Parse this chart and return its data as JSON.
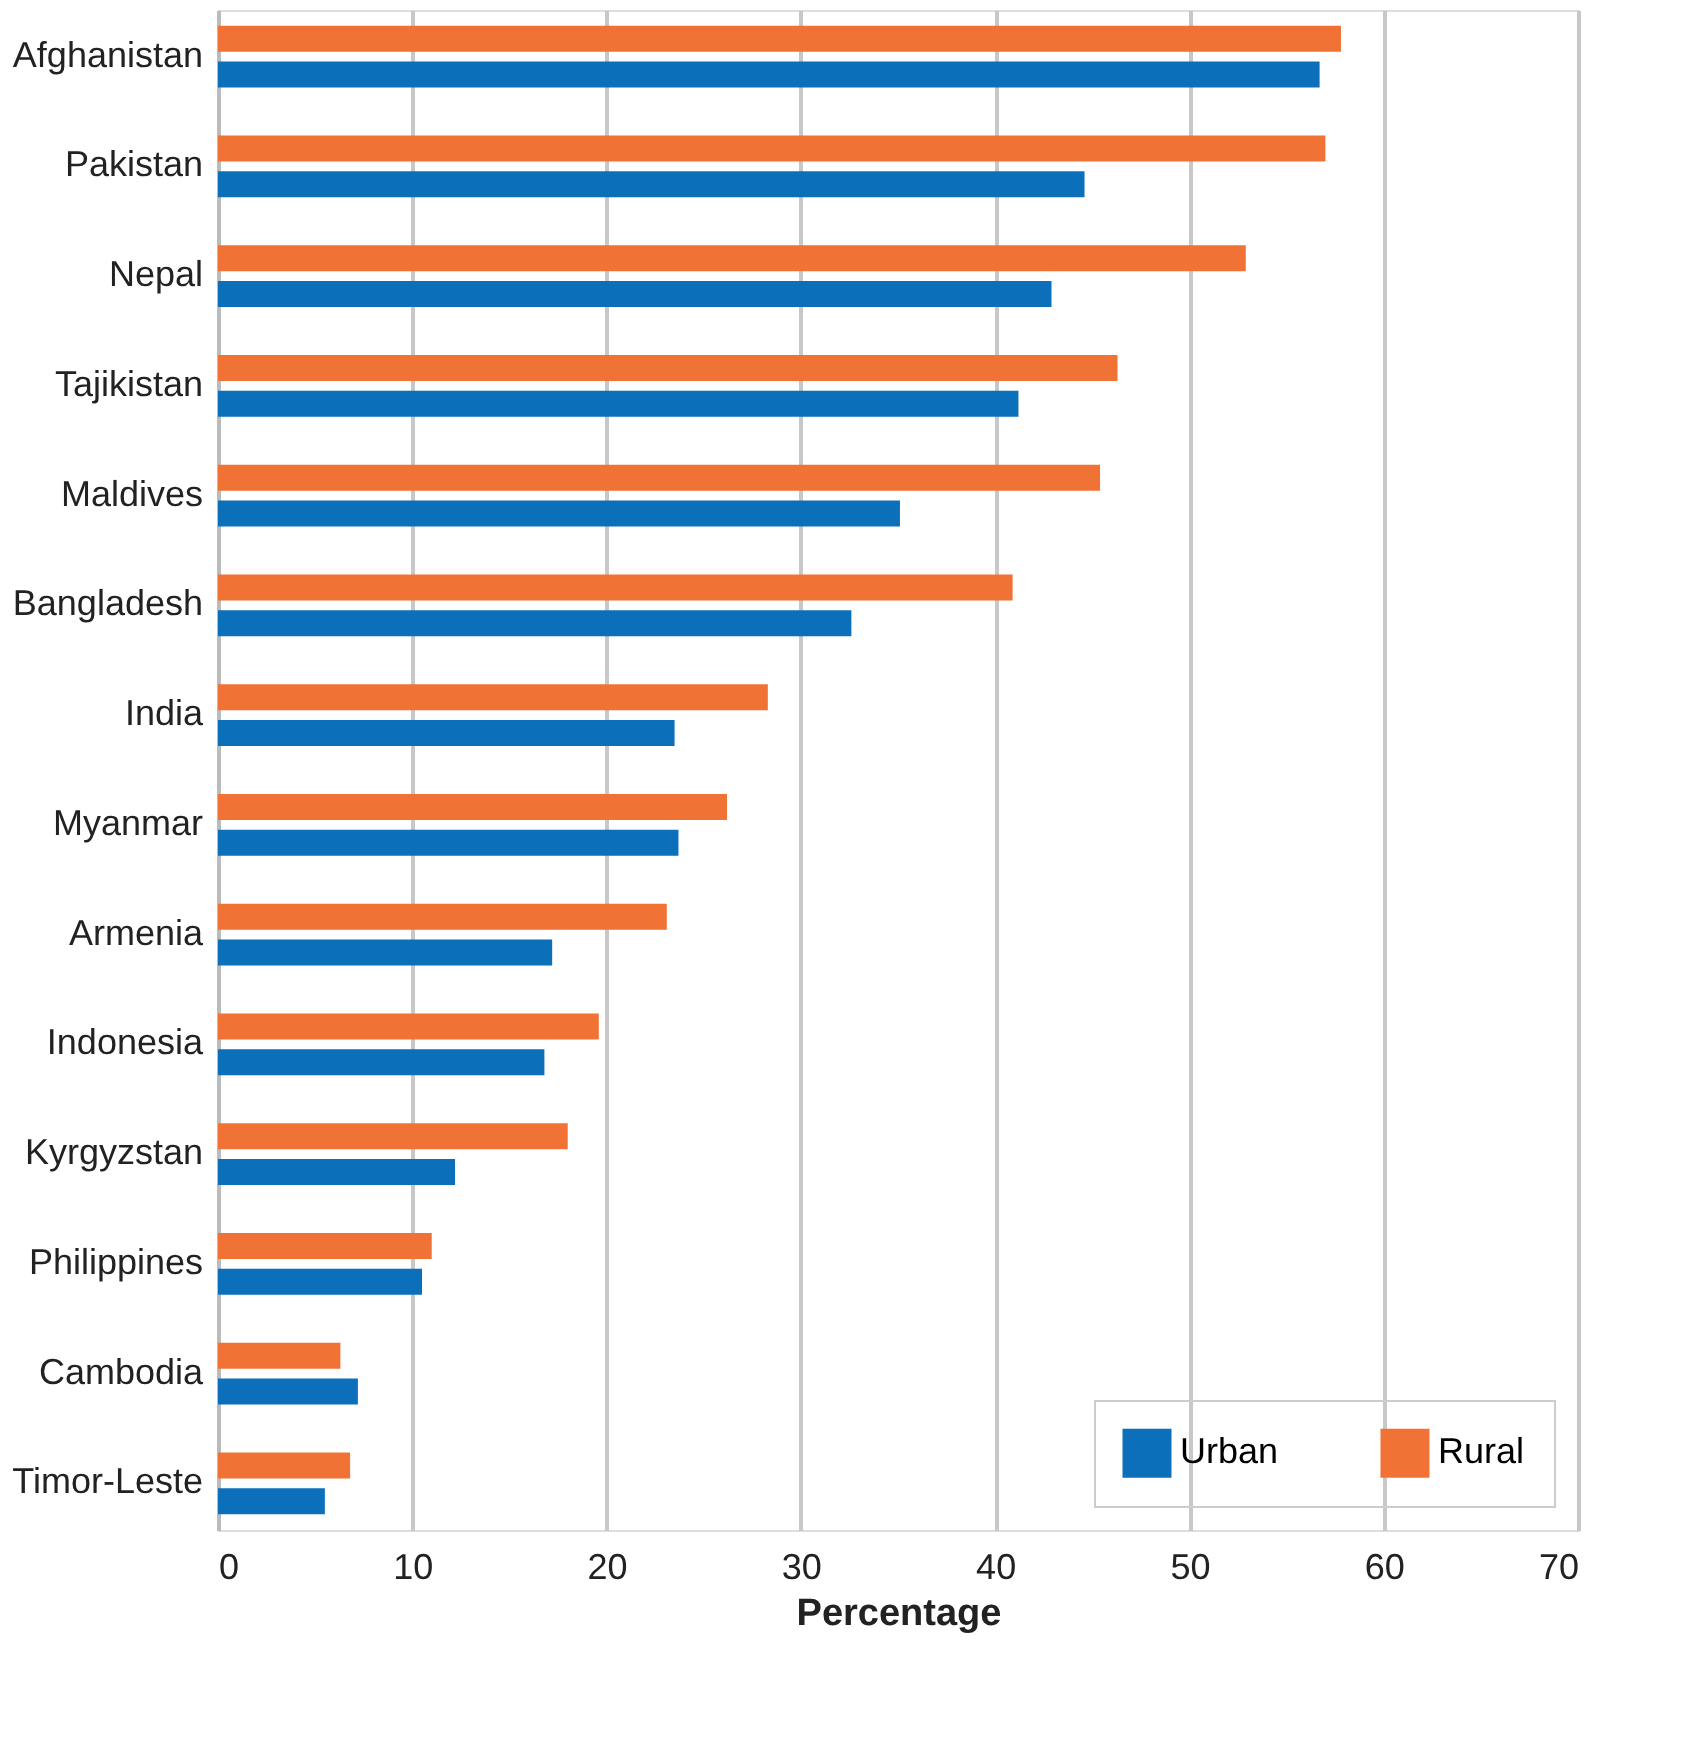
{
  "chart_data": {
    "type": "bar",
    "orientation": "horizontal",
    "xlabel": "Percentage",
    "categories": [
      "Afghanistan",
      "Pakistan",
      "Nepal",
      "Tajikistan",
      "Maldives",
      "Bangladesh",
      "India",
      "Myanmar",
      "Armenia",
      "Indonesia",
      "Kyrgyzstan",
      "Philippines",
      "Cambodia",
      "Timor-Leste"
    ],
    "series": [
      {
        "name": "Urban",
        "color": "#0b6fba",
        "values": [
          56.7,
          44.6,
          42.9,
          41.2,
          35.1,
          32.6,
          23.5,
          23.7,
          17.2,
          16.8,
          12.2,
          10.5,
          7.2,
          5.5
        ]
      },
      {
        "name": "Rural",
        "color": "#f07335",
        "values": [
          57.8,
          57.0,
          52.9,
          46.3,
          45.4,
          40.9,
          28.3,
          26.2,
          23.1,
          19.6,
          18.0,
          11.0,
          6.3,
          6.8
        ]
      }
    ],
    "xlim": [
      0,
      70
    ],
    "xticks": [
      0,
      10,
      20,
      30,
      40,
      50,
      60,
      70
    ],
    "grid": "x",
    "legend": "bottom right"
  }
}
